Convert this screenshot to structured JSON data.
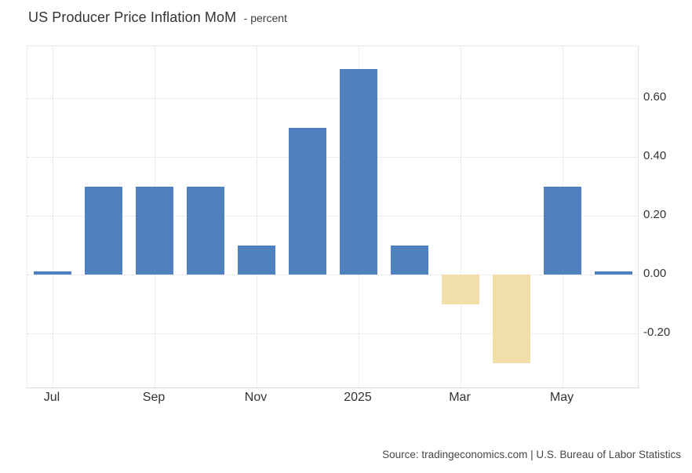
{
  "header": {
    "title": "US Producer Price Inflation MoM",
    "unit_label": "- percent"
  },
  "footer": {
    "source_text": "Source: tradingeconomics.com | U.S. Bureau of Labor Statistics"
  },
  "chart_data": {
    "type": "bar",
    "title": "US Producer Price Inflation MoM",
    "unit": "percent",
    "categories": [
      "Jul 2024",
      "Aug 2024",
      "Sep 2024",
      "Oct 2024",
      "Nov 2024",
      "Dec 2024",
      "Jan 2025",
      "Feb 2025",
      "Mar 2025",
      "Apr 2025",
      "May 2025",
      "Jun 2025"
    ],
    "values": [
      0.0,
      0.3,
      0.3,
      0.3,
      0.1,
      0.5,
      0.7,
      0.1,
      -0.1,
      -0.3,
      0.3,
      0.0
    ],
    "x_tick_labels": [
      "Jul",
      "Sep",
      "Nov",
      "2025",
      "Mar",
      "May"
    ],
    "x_tick_category_indexes": [
      0,
      2,
      4,
      6,
      8,
      10
    ],
    "y_tick_labels": [
      "0.60",
      "0.40",
      "0.20",
      "0.00",
      "-0.20"
    ],
    "y_tick_values": [
      0.6,
      0.4,
      0.2,
      0.0,
      -0.2
    ],
    "ylim": [
      -0.39,
      0.77
    ],
    "xlabel": "",
    "ylabel": "",
    "grid": "dotted",
    "legend": "none",
    "colors": {
      "positive_bar": "#4f80c0",
      "negative_bar": "#f2deab"
    }
  }
}
